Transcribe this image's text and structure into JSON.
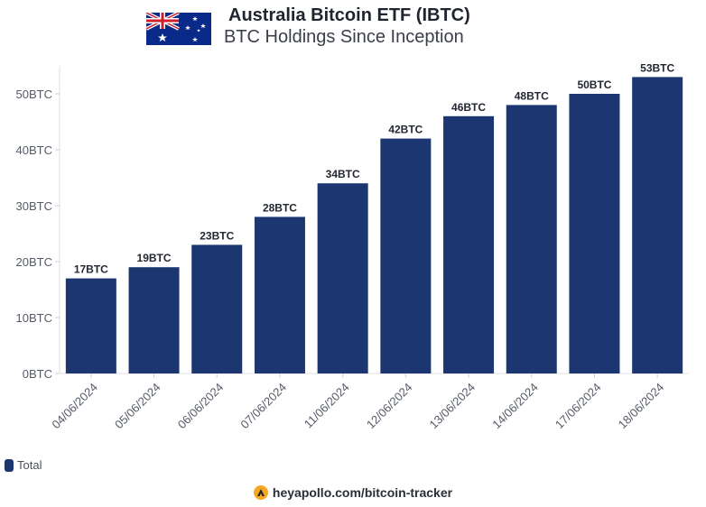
{
  "header": {
    "title": "Australia Bitcoin ETF (IBTC)",
    "subtitle": "BTC Holdings Since Inception",
    "flag_icon": "australia-flag-icon"
  },
  "colors": {
    "bar": "#1c3672",
    "axis_text": "#555a66",
    "grid": "#e6e6e6",
    "label_text": "#232732"
  },
  "legend": {
    "label": "Total"
  },
  "footer": {
    "logo_icon": "apollo-logo-icon",
    "text": "heyapollo.com/bitcoin-tracker"
  },
  "chart_data": {
    "type": "bar",
    "categories": [
      "04/06/2024",
      "05/06/2024",
      "06/06/2024",
      "07/06/2024",
      "11/06/2024",
      "12/06/2024",
      "13/06/2024",
      "14/06/2024",
      "17/06/2024",
      "18/06/2024"
    ],
    "series": [
      {
        "name": "Total",
        "values": [
          17,
          19,
          23,
          28,
          34,
          42,
          46,
          48,
          50,
          53
        ]
      }
    ],
    "data_labels": [
      "17BTC",
      "19BTC",
      "23BTC",
      "28BTC",
      "34BTC",
      "42BTC",
      "46BTC",
      "48BTC",
      "50BTC",
      "53BTC"
    ],
    "y_ticks": [
      0,
      10,
      20,
      30,
      40,
      50
    ],
    "y_tick_labels": [
      "0BTC",
      "10BTC",
      "20BTC",
      "30BTC",
      "40BTC",
      "50BTC"
    ],
    "ylim": [
      0,
      55
    ],
    "grid": false,
    "legend_position": "bottom-left"
  }
}
